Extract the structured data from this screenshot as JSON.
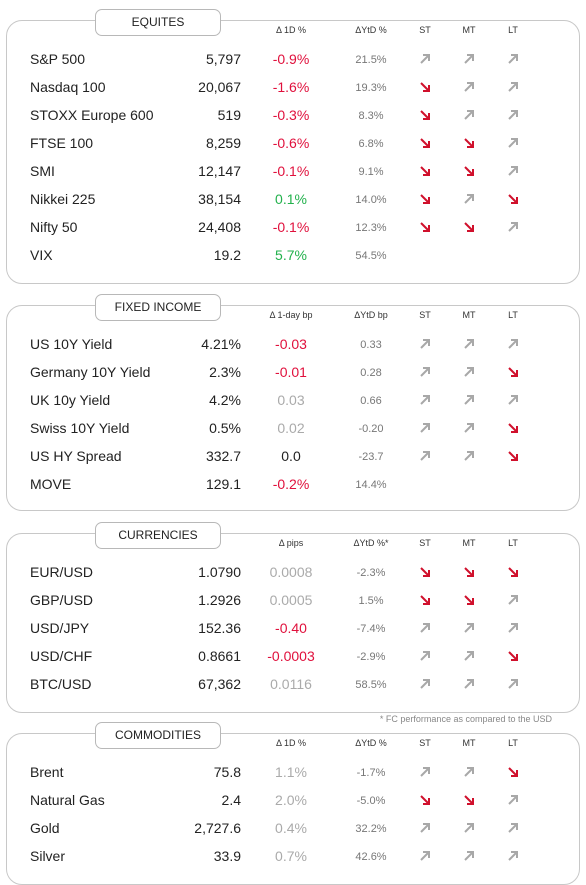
{
  "sections": [
    {
      "title": "EQUITES",
      "headers": [
        "Δ 1D %",
        "ΔYtD %",
        "ST",
        "MT",
        "LT"
      ],
      "rows": [
        {
          "name": "S&P 500",
          "value": "5,797",
          "change": "-0.9%",
          "change_color": "#e0103c",
          "ytd": "21.5%",
          "trends": [
            "up",
            "up",
            "up"
          ]
        },
        {
          "name": "Nasdaq 100",
          "value": "20,067",
          "change": "-1.6%",
          "change_color": "#e0103c",
          "ytd": "19.3%",
          "trends": [
            "down",
            "up",
            "up"
          ]
        },
        {
          "name": "STOXX Europe 600",
          "value": "519",
          "change": "-0.3%",
          "change_color": "#e0103c",
          "ytd": "8.3%",
          "trends": [
            "down",
            "up",
            "up"
          ]
        },
        {
          "name": "FTSE 100",
          "value": "8,259",
          "change": "-0.6%",
          "change_color": "#e0103c",
          "ytd": "6.8%",
          "trends": [
            "down",
            "down",
            "up"
          ]
        },
        {
          "name": "SMI",
          "value": "12,147",
          "change": "-0.1%",
          "change_color": "#e0103c",
          "ytd": "9.1%",
          "trends": [
            "down",
            "down",
            "up"
          ]
        },
        {
          "name": "Nikkei 225",
          "value": "38,154",
          "change": "0.1%",
          "change_color": "#22b14c",
          "ytd": "14.0%",
          "trends": [
            "down",
            "up",
            "down"
          ]
        },
        {
          "name": "Nifty  50",
          "value": "24,408",
          "change": "-0.1%",
          "change_color": "#e0103c",
          "ytd": "12.3%",
          "trends": [
            "down",
            "down",
            "up"
          ]
        },
        {
          "name": "VIX",
          "value": "19.2",
          "change": "5.7%",
          "change_color": "#22b14c",
          "ytd": "54.5%",
          "trends": null
        }
      ]
    },
    {
      "title": "FIXED INCOME",
      "headers": [
        "Δ 1-day bp",
        "ΔYtD bp",
        "ST",
        "MT",
        "LT"
      ],
      "rows": [
        {
          "name": "US 10Y Yield",
          "value": "4.21%",
          "change": "-0.03",
          "change_color": "#e0103c",
          "ytd": "0.33",
          "trends": [
            "up",
            "up",
            "up"
          ]
        },
        {
          "name": "Germany 10Y Yield",
          "value": "2.3%",
          "change": "-0.01",
          "change_color": "#e0103c",
          "ytd": "0.28",
          "trends": [
            "up",
            "up",
            "down"
          ]
        },
        {
          "name": "UK 10y Yield",
          "value": "4.2%",
          "change": "0.03",
          "change_color": "#aaaaaa",
          "ytd": "0.66",
          "trends": [
            "up",
            "up",
            "up"
          ]
        },
        {
          "name": "Swiss 10Y Yield",
          "value": "0.5%",
          "change": "0.02",
          "change_color": "#aaaaaa",
          "ytd": "-0.20",
          "trends": [
            "up",
            "up",
            "down"
          ]
        },
        {
          "name": "US HY Spread",
          "value": "332.7",
          "change": "0.0",
          "change_color": "#222222",
          "ytd": "-23.7",
          "trends": [
            "up",
            "up",
            "down"
          ]
        },
        {
          "name": "MOVE",
          "value": "129.1",
          "change": "-0.2%",
          "change_color": "#e0103c",
          "ytd": "14.4%",
          "trends": null
        }
      ]
    },
    {
      "title": "CURRENCIES",
      "headers": [
        "Δ pips",
        "ΔYtD %*",
        "ST",
        "MT",
        "LT"
      ],
      "rows": [
        {
          "name": "EUR/USD",
          "value": "1.0790",
          "change": "0.0008",
          "change_color": "#aaaaaa",
          "ytd": "-2.3%",
          "trends": [
            "down",
            "down",
            "down"
          ]
        },
        {
          "name": "GBP/USD",
          "value": "1.2926",
          "change": "0.0005",
          "change_color": "#aaaaaa",
          "ytd": "1.5%",
          "trends": [
            "down",
            "down",
            "up"
          ]
        },
        {
          "name": "USD/JPY",
          "value": "152.36",
          "change": "-0.40",
          "change_color": "#e0103c",
          "ytd": "-7.4%",
          "trends": [
            "up",
            "up",
            "up"
          ]
        },
        {
          "name": "USD/CHF",
          "value": "0.8661",
          "change": "-0.0003",
          "change_color": "#e0103c",
          "ytd": "-2.9%",
          "trends": [
            "up",
            "up",
            "down"
          ]
        },
        {
          "name": "BTC/USD",
          "value": "67,362",
          "change": "0.0116",
          "change_color": "#aaaaaa",
          "ytd": "58.5%",
          "trends": [
            "up",
            "up",
            "up"
          ]
        }
      ]
    },
    {
      "title": "COMMODITIES",
      "headers": [
        "Δ 1D %",
        "ΔYtD %",
        "ST",
        "MT",
        "LT"
      ],
      "rows": [
        {
          "name": "Brent",
          "value": "75.8",
          "change": "1.1%",
          "change_color": "#aaaaaa",
          "ytd": "-1.7%",
          "trends": [
            "up",
            "up",
            "down"
          ]
        },
        {
          "name": "Natural Gas",
          "value": "2.4",
          "change": "2.0%",
          "change_color": "#aaaaaa",
          "ytd": "-5.0%",
          "trends": [
            "down",
            "down",
            "up"
          ]
        },
        {
          "name": "Gold",
          "value": "2,727.6",
          "change": "0.4%",
          "change_color": "#aaaaaa",
          "ytd": "32.2%",
          "trends": [
            "up",
            "up",
            "up"
          ]
        },
        {
          "name": "Silver",
          "value": "33.9",
          "change": "0.7%",
          "change_color": "#aaaaaa",
          "ytd": "42.6%",
          "trends": [
            "up",
            "up",
            "up"
          ]
        }
      ]
    }
  ],
  "footnote": "* FC performance as compared to the USD"
}
